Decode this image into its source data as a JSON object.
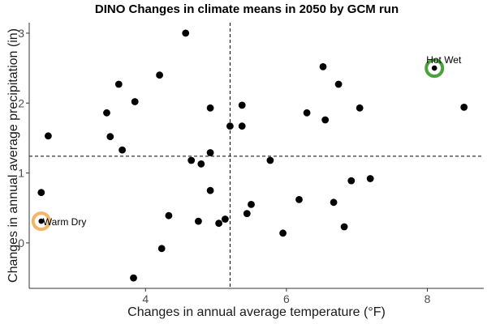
{
  "chart_data": {
    "type": "scatter",
    "title": "DINO Changes in climate means in 2050 by GCM run",
    "xlabel": "Changes in annual average temperature (°F)",
    "ylabel": "Changes in annual average precipitation (in)",
    "xlim": [
      2.35,
      8.8
    ],
    "ylim": [
      -0.65,
      3.15
    ],
    "x_ticks": [
      {
        "value": 4,
        "label": "4"
      },
      {
        "value": 6,
        "label": "6"
      },
      {
        "value": 8,
        "label": "8"
      }
    ],
    "y_ticks": [
      {
        "value": 0,
        "label": "0"
      },
      {
        "value": 1,
        "label": "1"
      },
      {
        "value": 2,
        "label": "2"
      },
      {
        "value": 3,
        "label": "3"
      }
    ],
    "grid": false,
    "reference_lines": {
      "x": 5.2,
      "y": 1.24
    },
    "points": [
      {
        "x": 2.52,
        "y": 0.72
      },
      {
        "x": 2.62,
        "y": 1.53
      },
      {
        "x": 3.45,
        "y": 1.86
      },
      {
        "x": 3.5,
        "y": 1.52
      },
      {
        "x": 3.62,
        "y": 2.27
      },
      {
        "x": 3.67,
        "y": 1.33
      },
      {
        "x": 3.83,
        "y": -0.5
      },
      {
        "x": 3.85,
        "y": 2.02
      },
      {
        "x": 4.2,
        "y": 2.4
      },
      {
        "x": 4.23,
        "y": -0.08
      },
      {
        "x": 4.33,
        "y": 0.39
      },
      {
        "x": 4.57,
        "y": 3.0
      },
      {
        "x": 4.65,
        "y": 1.18
      },
      {
        "x": 4.75,
        "y": 0.31
      },
      {
        "x": 4.79,
        "y": 1.13
      },
      {
        "x": 4.92,
        "y": 1.93
      },
      {
        "x": 4.92,
        "y": 1.29
      },
      {
        "x": 4.92,
        "y": 0.75
      },
      {
        "x": 5.04,
        "y": 0.28
      },
      {
        "x": 5.13,
        "y": 0.34
      },
      {
        "x": 5.2,
        "y": 1.67
      },
      {
        "x": 5.37,
        "y": 1.97
      },
      {
        "x": 5.37,
        "y": 1.67
      },
      {
        "x": 5.44,
        "y": 0.42
      },
      {
        "x": 5.5,
        "y": 0.55
      },
      {
        "x": 5.77,
        "y": 1.18
      },
      {
        "x": 5.95,
        "y": 0.14
      },
      {
        "x": 6.18,
        "y": 0.62
      },
      {
        "x": 6.29,
        "y": 1.86
      },
      {
        "x": 6.52,
        "y": 2.52
      },
      {
        "x": 6.55,
        "y": 1.76
      },
      {
        "x": 6.67,
        "y": 0.58
      },
      {
        "x": 6.74,
        "y": 2.27
      },
      {
        "x": 6.82,
        "y": 0.23
      },
      {
        "x": 6.92,
        "y": 0.89
      },
      {
        "x": 7.04,
        "y": 1.93
      },
      {
        "x": 7.19,
        "y": 0.92
      },
      {
        "x": 8.52,
        "y": 1.94
      }
    ],
    "highlights": [
      {
        "label": "Hot Wet",
        "x": 8.1,
        "y": 2.5,
        "color": "#4aa33a"
      },
      {
        "label": "Warm Dry",
        "x": 2.52,
        "y": 0.31,
        "color": "#f4b566"
      }
    ]
  }
}
